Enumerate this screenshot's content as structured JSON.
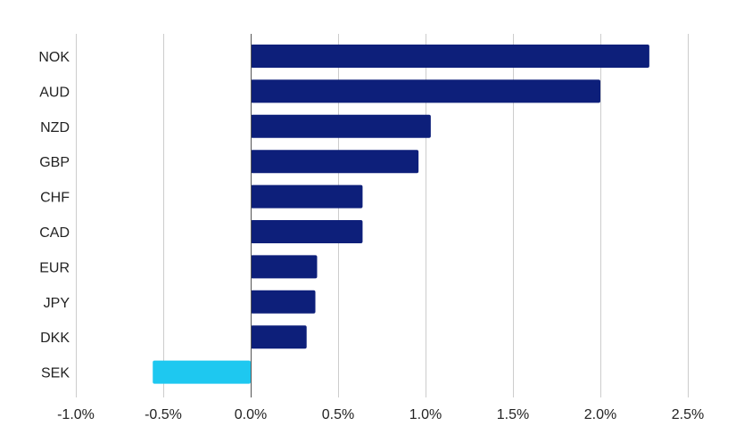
{
  "chart_data": {
    "type": "bar",
    "orientation": "horizontal",
    "title": "",
    "xlabel": "",
    "ylabel": "",
    "categories": [
      "NOK",
      "AUD",
      "NZD",
      "GBP",
      "CHF",
      "CAD",
      "EUR",
      "JPY",
      "DKK",
      "SEK"
    ],
    "values": [
      2.28,
      2.0,
      1.03,
      0.96,
      0.64,
      0.64,
      0.38,
      0.37,
      0.32,
      -0.56
    ],
    "xlim": [
      -1.0,
      2.5
    ],
    "xticks": [
      -1.0,
      -0.5,
      0.0,
      0.5,
      1.0,
      1.5,
      2.0,
      2.5
    ],
    "xtick_labels": [
      "-1.0%",
      "-0.5%",
      "0.0%",
      "0.5%",
      "1.0%",
      "1.5%",
      "2.0%",
      "2.5%"
    ],
    "grid": true,
    "legend": "none",
    "colors": {
      "positive": "#0d1f7a",
      "negative": "#1ec8f0",
      "grid": "#cccccc",
      "zero_line": "#555555",
      "text": "#222222"
    }
  }
}
